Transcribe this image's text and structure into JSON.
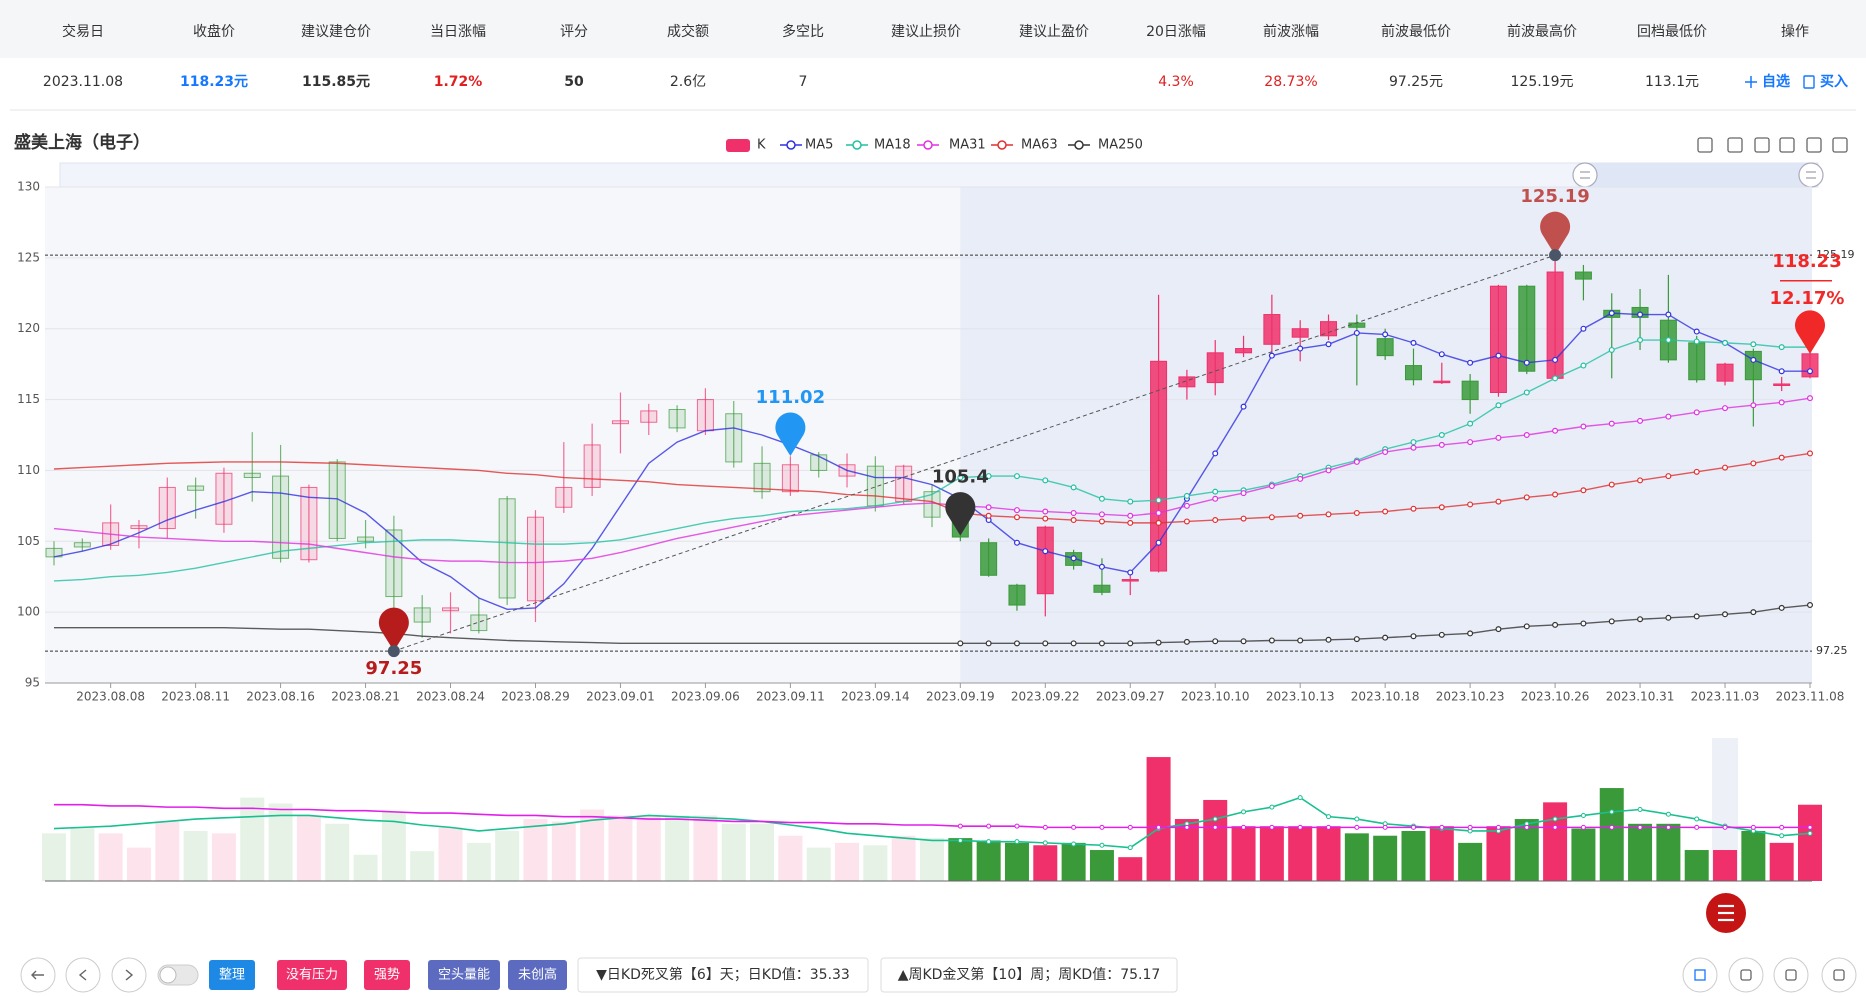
{
  "table": {
    "headers": [
      "交易日",
      "收盘价",
      "建议建仓价",
      "当日涨幅",
      "评分",
      "成交额",
      "多空比",
      "建议止损价",
      "建议止盈价",
      "20日涨幅",
      "前波涨幅",
      "前波最低价",
      "前波最高价",
      "回档最低价",
      "操作"
    ],
    "row": [
      "2023.11.08",
      "118.23元",
      "115.85元",
      "1.72%",
      "50",
      "2.6亿",
      "7",
      null,
      null,
      "4.3%",
      "28.73%",
      "97.25元",
      "125.19元",
      "113.1元"
    ],
    "actions": [
      "自选",
      "买入"
    ]
  },
  "chart_data": {
    "type": "candlestick",
    "title": "盛美上海（电子）",
    "categories": [
      null,
      null,
      "2023.08.08",
      null,
      null,
      "2023.08.11",
      null,
      null,
      "2023.08.16",
      null,
      null,
      "2023.08.21",
      null,
      null,
      "2023.08.24",
      null,
      null,
      "2023.08.29",
      null,
      null,
      "2023.09.01",
      null,
      null,
      "2023.09.06",
      null,
      null,
      "2023.09.11",
      null,
      null,
      "2023.09.14",
      null,
      null,
      "2023.09.19",
      null,
      null,
      "2023.09.22",
      null,
      null,
      "2023.09.27",
      null,
      null,
      "2023.10.10",
      null,
      null,
      "2023.10.13",
      null,
      null,
      "2023.10.18",
      null,
      null,
      "2023.10.23",
      null,
      null,
      "2023.10.26",
      null,
      null,
      "2023.10.31",
      null,
      null,
      "2023.11.03",
      null,
      null,
      "2023.11.08"
    ],
    "ylim": [
      95,
      130
    ],
    "yticks": [
      95,
      100,
      105,
      110,
      115,
      120,
      125,
      130
    ],
    "grid": true,
    "selected_from": "2023.09.19",
    "series": [
      {
        "name": "K",
        "color": "#f0306a",
        "down_color": "#3a9a3a",
        "open": [
          104.5,
          104.9,
          104.7,
          105.9,
          105.9,
          108.9,
          106.2,
          109.8,
          109.6,
          103.7,
          110.6,
          105.3,
          105.8,
          100.3,
          100.1,
          99.8,
          108.0,
          100.8,
          107.4,
          108.8,
          113.3,
          113.4,
          114.3,
          112.8,
          114.0,
          110.5,
          108.5,
          111.1,
          109.6,
          110.3,
          107.8,
          108.5,
          107.2,
          104.9,
          101.9,
          101.3,
          104.2,
          101.9,
          102.2,
          102.9,
          115.9,
          116.2,
          118.3,
          118.9,
          119.4,
          119.5,
          120.4,
          119.3,
          117.4,
          116.2,
          116.3,
          115.5,
          123.0,
          116.5,
          124.0,
          121.3,
          121.5,
          120.6,
          119.0,
          116.3,
          118.4,
          116.0,
          116.6
        ],
        "high": [
          105.0,
          105.2,
          107.6,
          106.5,
          109.5,
          109.5,
          110.2,
          112.7,
          111.8,
          109.0,
          110.8,
          106.5,
          106.8,
          101.2,
          101.4,
          101.0,
          108.2,
          107.2,
          112.0,
          113.3,
          115.5,
          114.7,
          114.6,
          115.8,
          114.9,
          111.7,
          111.0,
          111.3,
          111.2,
          111.0,
          110.4,
          109.0,
          107.5,
          105.2,
          102.0,
          106.1,
          104.4,
          103.8,
          102.6,
          122.4,
          117.1,
          119.2,
          119.5,
          122.4,
          120.6,
          121.0,
          121.0,
          120.0,
          118.6,
          117.6,
          116.8,
          123.1,
          123.1,
          125.19,
          124.5,
          122.5,
          122.8,
          123.8,
          119.5,
          117.6,
          118.6,
          116.6,
          118.5
        ],
        "low": [
          103.3,
          104.3,
          104.4,
          104.5,
          105.2,
          106.6,
          105.6,
          107.8,
          103.5,
          103.5,
          105.0,
          104.5,
          97.25,
          98.2,
          98.5,
          98.5,
          100.5,
          99.3,
          107.0,
          108.2,
          111.2,
          112.5,
          112.7,
          112.5,
          110.2,
          108.0,
          108.2,
          109.5,
          108.8,
          107.1,
          107.6,
          106.0,
          105.0,
          102.5,
          100.1,
          99.7,
          103.0,
          101.2,
          101.2,
          102.8,
          115.0,
          115.3,
          118.0,
          118.2,
          117.7,
          119.2,
          116.0,
          117.8,
          116.0,
          116.1,
          114.0,
          115.2,
          116.8,
          116.3,
          122.0,
          116.5,
          118.5,
          117.6,
          116.2,
          116.0,
          113.1,
          115.6,
          116.5
        ],
        "close": [
          103.9,
          104.6,
          106.3,
          106.1,
          108.8,
          108.6,
          109.8,
          109.5,
          103.8,
          108.8,
          105.2,
          105.0,
          101.1,
          99.3,
          100.3,
          98.7,
          101.0,
          106.7,
          108.8,
          111.8,
          113.5,
          114.2,
          113.0,
          115.0,
          110.6,
          108.5,
          110.4,
          110.0,
          110.4,
          107.5,
          110.3,
          106.7,
          105.3,
          102.6,
          100.5,
          106.0,
          103.3,
          101.4,
          102.3,
          117.7,
          116.6,
          118.3,
          118.6,
          121.0,
          120.0,
          120.5,
          120.1,
          118.1,
          116.4,
          116.3,
          115.0,
          123.0,
          117.0,
          124.0,
          123.5,
          120.8,
          120.8,
          117.8,
          116.4,
          117.5,
          116.4,
          116.1,
          118.23
        ]
      },
      {
        "name": "MA5",
        "color": "#3030e0",
        "values": [
          103.9,
          104.3,
          104.8,
          105.6,
          106.5,
          107.2,
          107.8,
          108.5,
          108.4,
          108.1,
          108.0,
          107.0,
          105.3,
          103.5,
          102.5,
          101.0,
          100.2,
          100.3,
          102.0,
          104.5,
          107.5,
          110.5,
          112.0,
          112.8,
          113.0,
          112.5,
          111.8,
          111.0,
          110.0,
          109.5,
          109.5,
          109.0,
          108.0,
          106.5,
          104.9,
          104.3,
          103.8,
          103.2,
          102.8,
          104.9,
          108.0,
          111.2,
          114.5,
          118.1,
          118.6,
          118.9,
          119.7,
          119.6,
          119.0,
          118.2,
          117.6,
          118.1,
          117.6,
          117.8,
          120.0,
          121.1,
          121.0,
          121.0,
          119.8,
          119.0,
          117.8,
          117.0,
          117.0
        ]
      },
      {
        "name": "MA18",
        "color": "#20c0a0",
        "values": [
          102.2,
          102.3,
          102.5,
          102.6,
          102.8,
          103.1,
          103.5,
          103.9,
          104.3,
          104.5,
          104.7,
          104.9,
          105.0,
          105.1,
          105.1,
          105.0,
          104.9,
          104.8,
          104.8,
          104.9,
          105.1,
          105.5,
          105.9,
          106.3,
          106.6,
          106.8,
          107.1,
          107.2,
          107.3,
          107.5,
          107.8,
          108.3,
          109.5,
          109.6,
          109.6,
          109.3,
          108.8,
          108.0,
          107.8,
          107.9,
          108.2,
          108.5,
          108.6,
          109.0,
          109.6,
          110.2,
          110.7,
          111.5,
          112.0,
          112.5,
          113.3,
          114.6,
          115.5,
          116.5,
          117.4,
          118.5,
          119.2,
          119.2,
          119.1,
          119.0,
          118.9,
          118.7,
          118.7
        ]
      },
      {
        "name": "MA31",
        "color": "#e030e0",
        "values": [
          105.9,
          105.7,
          105.5,
          105.3,
          105.2,
          105.1,
          105.0,
          105.0,
          104.9,
          104.8,
          104.5,
          104.2,
          103.9,
          103.7,
          103.6,
          103.6,
          103.5,
          103.5,
          103.6,
          103.8,
          104.2,
          104.7,
          105.2,
          105.6,
          106.0,
          106.4,
          106.8,
          107.0,
          107.2,
          107.4,
          107.6,
          107.7,
          107.5,
          107.4,
          107.2,
          107.1,
          107.0,
          106.9,
          106.8,
          107.0,
          107.5,
          108.0,
          108.4,
          108.9,
          109.4,
          110.0,
          110.6,
          111.3,
          111.6,
          111.8,
          112.0,
          112.3,
          112.5,
          112.8,
          113.1,
          113.3,
          113.5,
          113.8,
          114.1,
          114.4,
          114.6,
          114.8,
          115.1
        ]
      },
      {
        "name": "MA63",
        "color": "#e03030",
        "values": [
          110.1,
          110.2,
          110.3,
          110.4,
          110.5,
          110.55,
          110.6,
          110.6,
          110.6,
          110.55,
          110.5,
          110.4,
          110.3,
          110.2,
          110.1,
          110.0,
          109.8,
          109.7,
          109.5,
          109.4,
          109.3,
          109.2,
          109.0,
          108.9,
          108.8,
          108.7,
          108.6,
          108.5,
          108.3,
          108.2,
          108.0,
          107.8,
          107.0,
          106.8,
          106.7,
          106.6,
          106.5,
          106.4,
          106.3,
          106.3,
          106.4,
          106.5,
          106.6,
          106.7,
          106.8,
          106.9,
          107.0,
          107.1,
          107.3,
          107.4,
          107.6,
          107.8,
          108.1,
          108.3,
          108.6,
          109.0,
          109.3,
          109.6,
          109.9,
          110.2,
          110.5,
          110.9,
          111.2
        ]
      },
      {
        "name": "MA250",
        "color": "#333333",
        "values": [
          98.9,
          98.9,
          98.9,
          98.9,
          98.9,
          98.9,
          98.9,
          98.85,
          98.8,
          98.8,
          98.7,
          98.6,
          98.5,
          98.3,
          98.2,
          98.1,
          98.0,
          97.95,
          97.9,
          97.85,
          97.8,
          97.8,
          97.8,
          97.8,
          97.8,
          97.8,
          97.8,
          97.8,
          97.8,
          97.8,
          97.8,
          97.8,
          97.8,
          97.8,
          97.8,
          97.8,
          97.8,
          97.8,
          97.8,
          97.85,
          97.9,
          97.95,
          97.95,
          98.0,
          98.0,
          98.05,
          98.1,
          98.2,
          98.3,
          98.4,
          98.5,
          98.8,
          99.0,
          99.1,
          99.2,
          99.35,
          99.5,
          99.6,
          99.7,
          99.85,
          100.0,
          100.3,
          100.5
        ]
      }
    ],
    "annotations": [
      {
        "index": 12,
        "value": 97.25,
        "color": "#b71c1c"
      },
      {
        "index": 26,
        "value": 111.02,
        "color": "#2196f3"
      },
      {
        "index": 32,
        "value": 105.4,
        "color": "#333333"
      },
      {
        "index": 53,
        "value": 125.19,
        "color": "#c0504d"
      }
    ],
    "last": {
      "value": 118.23,
      "change": {
        "value": 12.17,
        "label": "12.17%"
      },
      "color": "#f02828"
    },
    "hlines": [
      125.19,
      97.25
    ],
    "volume": {
      "ylim": [
        0,
        120
      ],
      "values": [
        40,
        45,
        40,
        28,
        50,
        42,
        40,
        70,
        65,
        55,
        48,
        22,
        58,
        25,
        45,
        32,
        42,
        52,
        50,
        60,
        55,
        55,
        55,
        55,
        48,
        48,
        38,
        28,
        32,
        30,
        38,
        36,
        36,
        34,
        32,
        30,
        32,
        26,
        20,
        104,
        52,
        68,
        46,
        46,
        46,
        46,
        40,
        38,
        42,
        46,
        32,
        46,
        52,
        66,
        44,
        78,
        48,
        48,
        26,
        26,
        42,
        32,
        64
      ],
      "series": [
        {
          "color": "#18c090",
          "values": [
            44,
            45,
            46,
            48,
            50,
            52,
            53,
            54,
            55,
            55,
            53,
            51,
            50,
            47,
            45,
            42,
            44,
            46,
            48,
            51,
            53,
            55,
            54,
            53,
            52,
            50,
            47,
            44,
            40,
            38,
            36,
            34,
            34,
            33,
            33,
            32,
            31,
            30,
            28,
            44,
            48,
            52,
            58,
            62,
            70,
            54,
            52,
            48,
            46,
            44,
            42,
            42,
            48,
            52,
            55,
            58,
            60,
            56,
            52,
            46,
            42,
            38,
            40
          ]
        },
        {
          "color": "#e020e8",
          "values": [
            64,
            64,
            63,
            63,
            62,
            62,
            61,
            61,
            60,
            60,
            59,
            59,
            58,
            57,
            57,
            56,
            55,
            55,
            54,
            54,
            53,
            52,
            52,
            51,
            50,
            50,
            49,
            49,
            48,
            48,
            47,
            47,
            46,
            46,
            46,
            45,
            45,
            45,
            45,
            45,
            45,
            45,
            45,
            45,
            45,
            45,
            45,
            45,
            45,
            45,
            45,
            45,
            45,
            45,
            45,
            45,
            45,
            45,
            45,
            45,
            45,
            45,
            45
          ]
        }
      ]
    }
  },
  "toolbar": {
    "tags": [
      {
        "text": "整理",
        "color": "#1e88e5"
      },
      {
        "text": "没有压力",
        "color": "#f0306a"
      },
      {
        "text": "强势",
        "color": "#f0306a"
      },
      {
        "text": "空头量能",
        "color": "#5c6bc0"
      },
      {
        "text": "未创高",
        "color": "#5c6bc0"
      }
    ],
    "signals": [
      "▼日KD死叉第【6】天；日KD值：35.33",
      "▲周KD金叉第【10】周；周KD值：75.17"
    ]
  }
}
